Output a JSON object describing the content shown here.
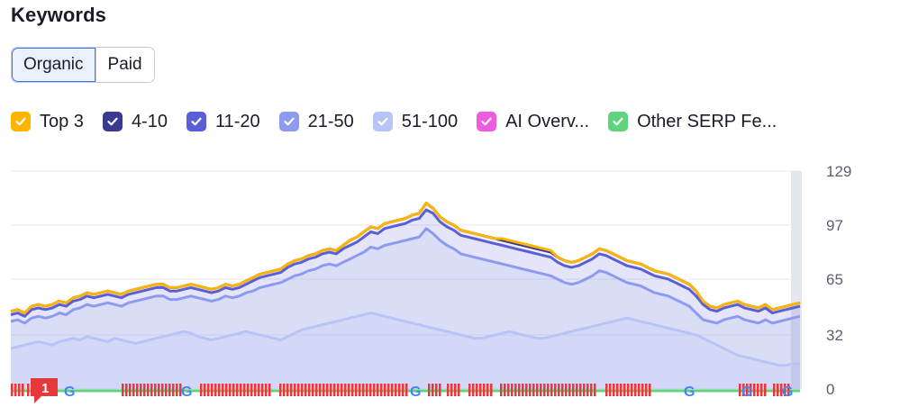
{
  "section_title": "Keywords",
  "tabs": [
    {
      "label": "Organic",
      "active": true
    },
    {
      "label": "Paid",
      "active": false
    }
  ],
  "legend": [
    {
      "label": "Top 3",
      "color": "#ffb400",
      "checked": true
    },
    {
      "label": "4-10",
      "color": "#3b3a93",
      "checked": true
    },
    {
      "label": "11-20",
      "color": "#5b5fd6",
      "checked": true
    },
    {
      "label": "21-50",
      "color": "#8d9af0",
      "checked": true
    },
    {
      "label": "51-100",
      "color": "#b8c3f7",
      "checked": true
    },
    {
      "label": "AI Overv...",
      "color": "#ee5be0",
      "checked": true
    },
    {
      "label": "Other SERP Fe...",
      "color": "#5fd47c",
      "checked": true
    }
  ],
  "feature_badge": "1",
  "chart_data": {
    "type": "area",
    "ylim": [
      0,
      129
    ],
    "yticks": [
      0,
      32,
      65,
      97,
      129
    ],
    "grid": true,
    "x_points": 120,
    "series": [
      {
        "name": "Top 3",
        "color": "#ffb400",
        "values": [
          46,
          47,
          45,
          49,
          50,
          49,
          50,
          52,
          51,
          54,
          55,
          57,
          56,
          57,
          58,
          57,
          56,
          58,
          59,
          60,
          61,
          62,
          62,
          60,
          60,
          61,
          62,
          61,
          60,
          59,
          60,
          62,
          61,
          62,
          64,
          66,
          68,
          69,
          70,
          71,
          74,
          76,
          77,
          79,
          80,
          82,
          83,
          82,
          85,
          88,
          90,
          93,
          96,
          95,
          98,
          99,
          100,
          101,
          103,
          104,
          110,
          107,
          102,
          99,
          97,
          94,
          93,
          92,
          91,
          90,
          89,
          89,
          88,
          87,
          86,
          85,
          84,
          83,
          82,
          78,
          76,
          75,
          76,
          78,
          80,
          83,
          82,
          80,
          78,
          76,
          75,
          74,
          72,
          70,
          69,
          68,
          66,
          64,
          62,
          58,
          52,
          49,
          48,
          50,
          51,
          52,
          50,
          49,
          48,
          50,
          47,
          48,
          49,
          50,
          51
        ]
      },
      {
        "name": "4-10",
        "color": "#3b3a93",
        "values": [
          46,
          47,
          45,
          49,
          50,
          49,
          50,
          52,
          51,
          54,
          55,
          57,
          56,
          57,
          58,
          57,
          56,
          58,
          59,
          60,
          61,
          62,
          62,
          60,
          60,
          61,
          62,
          61,
          60,
          59,
          60,
          62,
          61,
          62,
          64,
          66,
          68,
          69,
          70,
          71,
          74,
          76,
          77,
          79,
          80,
          82,
          83,
          82,
          85,
          88,
          90,
          93,
          96,
          95,
          98,
          99,
          100,
          101,
          103,
          104,
          110,
          107,
          102,
          99,
          97,
          94,
          93,
          92,
          91,
          90,
          89,
          88,
          87,
          86,
          85,
          84,
          83,
          82,
          81,
          78,
          76,
          75,
          76,
          78,
          80,
          83,
          82,
          80,
          78,
          76,
          75,
          74,
          72,
          70,
          69,
          68,
          66,
          64,
          62,
          58,
          52,
          49,
          48,
          50,
          51,
          52,
          50,
          49,
          48,
          50,
          47,
          48,
          49,
          50,
          51
        ]
      },
      {
        "name": "11-20",
        "color": "#5b5fd6",
        "values": [
          44,
          45,
          43,
          47,
          48,
          47,
          48,
          50,
          49,
          52,
          53,
          55,
          54,
          55,
          56,
          55,
          54,
          56,
          57,
          58,
          59,
          60,
          60,
          58,
          58,
          59,
          60,
          59,
          58,
          57,
          58,
          60,
          59,
          60,
          62,
          64,
          66,
          67,
          68,
          69,
          72,
          74,
          75,
          77,
          78,
          80,
          81,
          80,
          83,
          85,
          87,
          90,
          93,
          92,
          95,
          96,
          97,
          98,
          100,
          101,
          106,
          104,
          99,
          96,
          94,
          91,
          90,
          89,
          88,
          87,
          86,
          85,
          84,
          83,
          82,
          81,
          80,
          79,
          78,
          75,
          73,
          72,
          73,
          75,
          77,
          80,
          79,
          77,
          75,
          73,
          72,
          71,
          69,
          67,
          66,
          65,
          63,
          61,
          59,
          55,
          50,
          47,
          46,
          48,
          49,
          50,
          48,
          47,
          46,
          48,
          45,
          46,
          47,
          48,
          49
        ]
      },
      {
        "name": "21-50",
        "color": "#8d9af0",
        "values": [
          40,
          41,
          39,
          42,
          43,
          42,
          43,
          45,
          44,
          47,
          48,
          50,
          49,
          50,
          51,
          50,
          49,
          51,
          52,
          53,
          54,
          55,
          55,
          53,
          53,
          54,
          55,
          54,
          53,
          52,
          53,
          55,
          54,
          55,
          57,
          58,
          60,
          61,
          62,
          63,
          65,
          67,
          68,
          70,
          71,
          73,
          74,
          73,
          75,
          77,
          79,
          81,
          84,
          83,
          85,
          86,
          87,
          88,
          89,
          90,
          95,
          92,
          88,
          85,
          83,
          80,
          79,
          78,
          77,
          76,
          75,
          74,
          73,
          72,
          71,
          70,
          69,
          68,
          67,
          65,
          63,
          62,
          63,
          65,
          67,
          70,
          69,
          67,
          65,
          63,
          62,
          61,
          59,
          57,
          56,
          55,
          53,
          51,
          49,
          45,
          41,
          40,
          39,
          41,
          42,
          43,
          41,
          40,
          39,
          41,
          39,
          40,
          41,
          42,
          43
        ]
      },
      {
        "name": "51-100",
        "color": "#b8c3f7",
        "values": [
          24,
          25,
          26,
          27,
          28,
          27,
          26,
          28,
          29,
          30,
          29,
          31,
          30,
          29,
          28,
          30,
          29,
          28,
          27,
          28,
          29,
          30,
          31,
          32,
          33,
          34,
          33,
          31,
          30,
          29,
          30,
          31,
          32,
          33,
          34,
          33,
          32,
          31,
          30,
          29,
          31,
          33,
          35,
          36,
          37,
          38,
          39,
          40,
          41,
          42,
          43,
          44,
          45,
          44,
          43,
          42,
          41,
          40,
          39,
          38,
          37,
          36,
          35,
          34,
          33,
          32,
          31,
          30,
          30,
          31,
          32,
          33,
          34,
          33,
          32,
          31,
          30,
          30,
          31,
          32,
          33,
          34,
          35,
          36,
          37,
          38,
          39,
          40,
          41,
          42,
          41,
          40,
          39,
          38,
          37,
          36,
          35,
          34,
          33,
          32,
          30,
          28,
          26,
          24,
          22,
          20,
          19,
          18,
          17,
          16,
          15,
          14,
          14,
          15,
          15
        ]
      }
    ],
    "serp_strip": {
      "colors": {
        "feature": "#e5383b",
        "google": "#4285f4",
        "line": "#5fd47c"
      }
    }
  }
}
